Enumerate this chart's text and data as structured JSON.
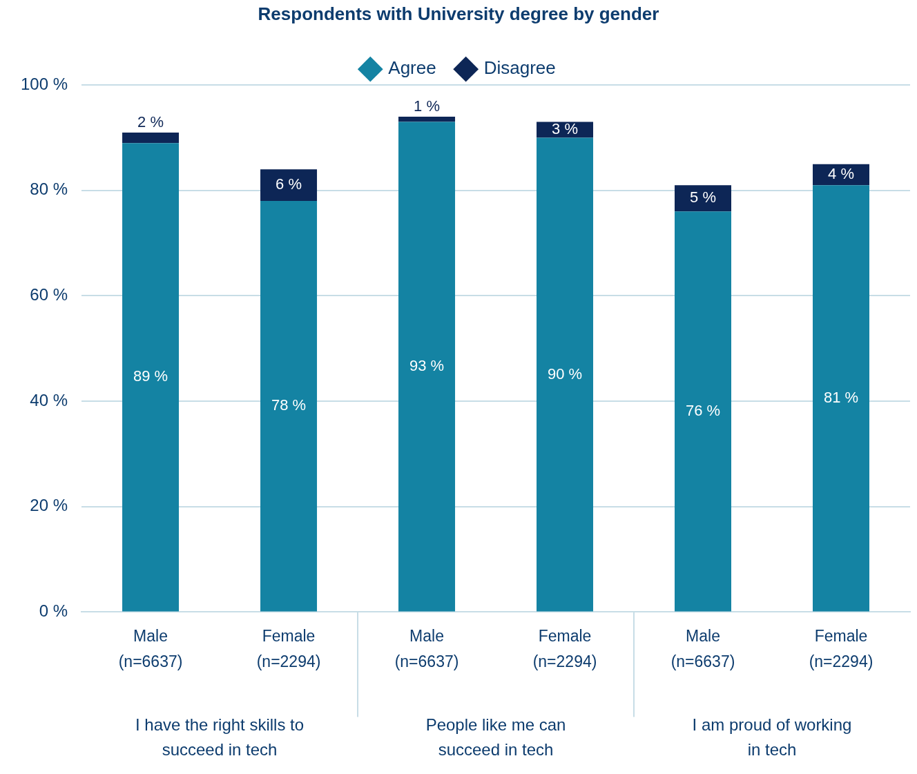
{
  "chart_data": {
    "type": "bar",
    "title": "Respondents with University degree by gender",
    "stacked": true,
    "legend": "top",
    "grid": "y",
    "data_labels": true,
    "categories": [
      "Male (n=6637)",
      "Female (n=2294)",
      "Male (n=6637)",
      "Female (n=2294)",
      "Male (n=6637)",
      "Female (n=2294)"
    ],
    "series": [
      {
        "name": "Agree",
        "color": "#1483a3",
        "values": [
          89,
          78,
          93,
          90,
          76,
          81
        ],
        "value_labels": [
          "89 %",
          "78 %",
          "93 %",
          "90 %",
          "76 %",
          "81 %"
        ]
      },
      {
        "name": "Disagree",
        "color": "#0d2656",
        "values": [
          2,
          6,
          1,
          3,
          5,
          4
        ],
        "value_labels": [
          "2 %",
          "6 %",
          "1 %",
          "3 %",
          "5 %",
          "4 %"
        ]
      }
    ],
    "ylim": [
      0,
      100
    ],
    "yticks": [
      {
        "value": 0,
        "label": "0 %"
      },
      {
        "value": 20,
        "label": "20 %"
      },
      {
        "value": 40,
        "label": "40 %"
      },
      {
        "value": 60,
        "label": "60 %"
      },
      {
        "value": 80,
        "label": "80 %"
      },
      {
        "value": 100,
        "label": "100 %"
      }
    ],
    "annotations": [
      "I have the right skills to succeed in tech",
      "People like me can succeed in tech",
      "I am proud of working in tech"
    ]
  }
}
